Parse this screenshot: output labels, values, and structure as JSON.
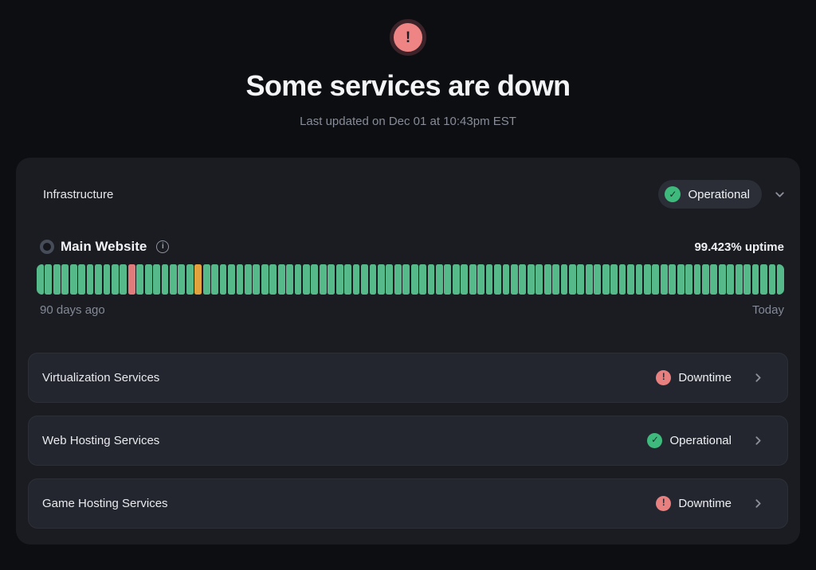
{
  "header": {
    "alert_icon_glyph": "!",
    "title": "Some services are down",
    "last_updated": "Last updated on Dec 01 at 10:43pm EST"
  },
  "group": {
    "title": "Infrastructure",
    "status": {
      "label": "Operational",
      "type": "operational",
      "icon_glyph": "✓"
    }
  },
  "monitor": {
    "name": "Main Website",
    "info_icon_glyph": "i",
    "uptime_label": "99.423% uptime",
    "range_start": "90 days ago",
    "range_end": "Today",
    "bars": {
      "total": 90,
      "default_status": "up",
      "overrides": {
        "11": "down",
        "19": "degraded"
      }
    }
  },
  "services": [
    {
      "name": "Virtualization Services",
      "status_label": "Downtime",
      "type": "downtime",
      "icon_glyph": "!"
    },
    {
      "name": "Web Hosting Services",
      "status_label": "Operational",
      "type": "operational",
      "icon_glyph": "✓"
    },
    {
      "name": "Game Hosting Services",
      "status_label": "Downtime",
      "type": "downtime",
      "icon_glyph": "!"
    }
  ],
  "icons": {
    "alert": "exclamation-circle",
    "operational": "check-circle",
    "downtime": "exclamation-circle",
    "expand": "chevron-down",
    "navigate": "chevron-right",
    "info": "info-circle"
  },
  "colors": {
    "page_bg": "#0d0e12",
    "card_bg": "#1a1c22",
    "row_bg": "#24262f",
    "pill_bg": "#2b2e37",
    "green": "#3fba7d",
    "bar_green": "#56b98a",
    "red": "#e98080",
    "bar_red": "#e07c7c",
    "bar_orange": "#e3a23e",
    "muted_text": "#878c98"
  }
}
